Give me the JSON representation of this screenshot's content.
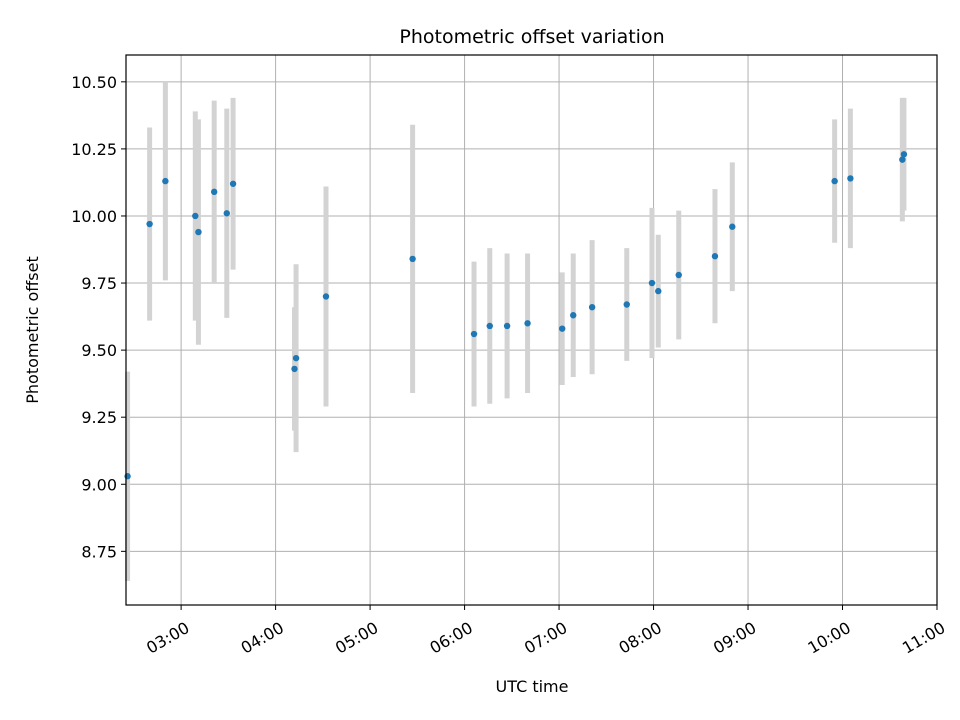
{
  "chart_data": {
    "type": "scatter",
    "title": "Photometric offset variation",
    "xlabel": "UTC time",
    "ylabel": "Photometric offset",
    "xlim": [
      "02:25",
      "11:00"
    ],
    "ylim": [
      8.55,
      10.6
    ],
    "x_ticks": [
      "03:00",
      "04:00",
      "05:00",
      "06:00",
      "07:00",
      "08:00",
      "09:00",
      "10:00",
      "11:00"
    ],
    "y_ticks": [
      8.75,
      9.0,
      9.25,
      9.5,
      9.75,
      10.0,
      10.25,
      10.5
    ],
    "y_tick_labels": [
      "8.75",
      "9.00",
      "9.25",
      "9.50",
      "9.75",
      "10.00",
      "10.25",
      "10.50"
    ],
    "grid": true,
    "legend": "none",
    "colors": {
      "point": "#1f77b4",
      "errorbar": "#d3d3d3",
      "grid": "#b0b0b0"
    },
    "points": [
      {
        "x": "02:26",
        "y": 9.03,
        "err": 0.39
      },
      {
        "x": "02:40",
        "y": 9.97,
        "err": 0.36
      },
      {
        "x": "02:50",
        "y": 10.13,
        "err": 0.37
      },
      {
        "x": "03:09",
        "y": 10.0,
        "err": 0.39
      },
      {
        "x": "03:11",
        "y": 9.94,
        "err": 0.42
      },
      {
        "x": "03:21",
        "y": 10.09,
        "err": 0.34
      },
      {
        "x": "03:29",
        "y": 10.01,
        "err": 0.39
      },
      {
        "x": "03:33",
        "y": 10.12,
        "err": 0.32
      },
      {
        "x": "04:12",
        "y": 9.43,
        "err": 0.23
      },
      {
        "x": "04:13",
        "y": 9.47,
        "err": 0.35
      },
      {
        "x": "04:32",
        "y": 9.7,
        "err": 0.41
      },
      {
        "x": "05:27",
        "y": 9.84,
        "err": 0.5
      },
      {
        "x": "06:06",
        "y": 9.56,
        "err": 0.27
      },
      {
        "x": "06:16",
        "y": 9.59,
        "err": 0.29
      },
      {
        "x": "06:27",
        "y": 9.59,
        "err": 0.27
      },
      {
        "x": "06:40",
        "y": 9.6,
        "err": 0.26
      },
      {
        "x": "07:02",
        "y": 9.58,
        "err": 0.21
      },
      {
        "x": "07:09",
        "y": 9.63,
        "err": 0.23
      },
      {
        "x": "07:21",
        "y": 9.66,
        "err": 0.25
      },
      {
        "x": "07:43",
        "y": 9.67,
        "err": 0.21
      },
      {
        "x": "07:59",
        "y": 9.75,
        "err": 0.28
      },
      {
        "x": "08:03",
        "y": 9.72,
        "err": 0.21
      },
      {
        "x": "08:16",
        "y": 9.78,
        "err": 0.24
      },
      {
        "x": "08:39",
        "y": 9.85,
        "err": 0.25
      },
      {
        "x": "08:50",
        "y": 9.96,
        "err": 0.24
      },
      {
        "x": "09:55",
        "y": 10.13,
        "err": 0.23
      },
      {
        "x": "10:05",
        "y": 10.14,
        "err": 0.26
      },
      {
        "x": "10:38",
        "y": 10.21,
        "err": 0.23
      },
      {
        "x": "10:39",
        "y": 10.23,
        "err": 0.21
      }
    ]
  }
}
